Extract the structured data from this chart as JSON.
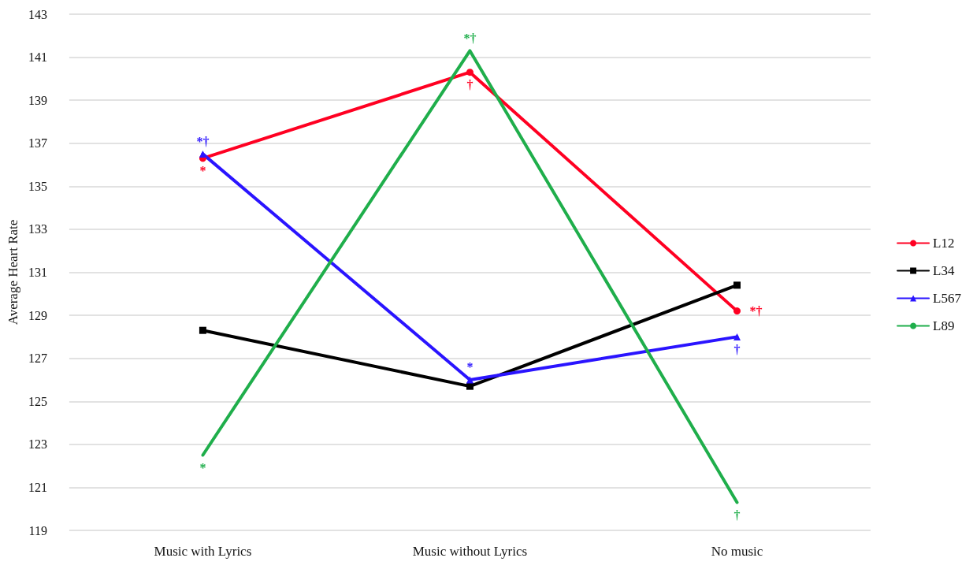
{
  "chart_data": {
    "type": "line",
    "ylabel": "Average Heart Rate",
    "categories": [
      "Music with Lyrics",
      "Music without Lyrics",
      "No music"
    ],
    "series": [
      {
        "name": "L12",
        "color": "#ff0022",
        "marker": "circle",
        "values": [
          136.3,
          140.3,
          129.2
        ]
      },
      {
        "name": "L34",
        "color": "#000000",
        "marker": "square",
        "values": [
          128.3,
          125.7,
          130.4
        ]
      },
      {
        "name": "L567",
        "color": "#2a14ff",
        "marker": "triangle",
        "values": [
          136.5,
          126.0,
          128.0
        ]
      },
      {
        "name": "L89",
        "color": "#1fae4b",
        "marker": "none",
        "values": [
          122.5,
          141.3,
          120.3
        ]
      }
    ],
    "ylim": [
      119,
      143
    ],
    "yticks": [
      119,
      121,
      123,
      125,
      127,
      129,
      131,
      133,
      135,
      137,
      139,
      141,
      143
    ],
    "grid": "y",
    "legend": "right",
    "annotations": [
      {
        "text": "*",
        "x": "Music with Lyrics",
        "y": 136.3
      },
      {
        "text": "*†",
        "x": "Music with Lyrics",
        "y": 136.5
      },
      {
        "text": "*",
        "x": "Music with Lyrics",
        "y": 122.5
      },
      {
        "text": "*†",
        "x": "Music without Lyrics",
        "y": 141.3
      },
      {
        "text": "†",
        "x": "Music without Lyrics",
        "y": 140.3
      },
      {
        "text": "*",
        "x": "Music without Lyrics",
        "y": 126.0
      },
      {
        "text": "*†",
        "x": "No music",
        "y": 129.2
      },
      {
        "text": "†",
        "x": "No music",
        "y": 128.0
      },
      {
        "text": "†",
        "x": "No music",
        "y": 120.3
      }
    ]
  }
}
